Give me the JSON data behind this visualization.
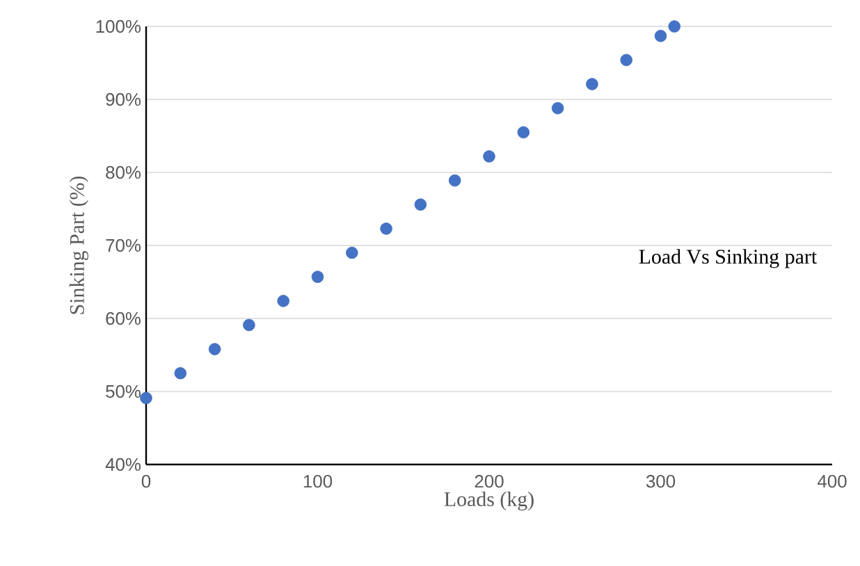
{
  "chart_data": {
    "type": "scatter",
    "xlabel": "Loads (kg)",
    "ylabel": "Sinking Part (%)",
    "annotations": [
      "Load Vs Sinking part"
    ],
    "x": [
      0,
      20,
      40,
      60,
      80,
      100,
      120,
      140,
      160,
      180,
      200,
      220,
      240,
      260,
      280,
      300,
      308
    ],
    "values": [
      49.1,
      52.5,
      55.8,
      59.1,
      62.4,
      65.7,
      69.0,
      72.3,
      75.6,
      78.9,
      82.2,
      85.5,
      88.8,
      92.1,
      95.4,
      98.7,
      100
    ],
    "color": "#4472c4",
    "grid": "y",
    "xlim": [
      0,
      400
    ],
    "xticks": [
      0,
      100,
      200,
      300,
      400
    ],
    "ylim": [
      40,
      100
    ],
    "yticks": [
      {
        "value": 40,
        "label": "40%"
      },
      {
        "value": 50,
        "label": "50%"
      },
      {
        "value": 60,
        "label": "60%"
      },
      {
        "value": 70,
        "label": "70%"
      },
      {
        "value": 80,
        "label": "80%"
      },
      {
        "value": 90,
        "label": "90%"
      },
      {
        "value": 100,
        "label": "100%"
      }
    ]
  }
}
